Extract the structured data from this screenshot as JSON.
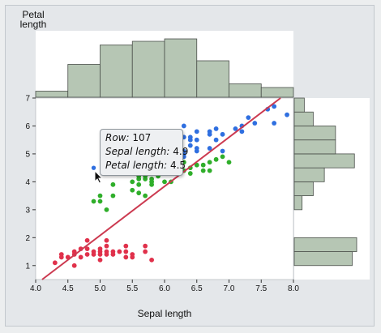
{
  "window": {
    "background": "#eceeef"
  },
  "tooltip": {
    "row_label": "Row:",
    "row_value": "107",
    "x_label": "Sepal length:",
    "x_value": "4.9",
    "y_label": "Petal length:",
    "y_value": "4.5"
  },
  "colors": {
    "setosa": "#e0314b",
    "versicolor": "#2fae2a",
    "virginica": "#2f6fe0",
    "fit_line": "#cc3a50",
    "histogram_fill": "#b6c6b4",
    "histogram_stroke": "#4a4f4a"
  },
  "chart_data": {
    "type": "scatter",
    "xlabel": "Sepal length",
    "ylabel_lines": [
      "Petal",
      "length"
    ],
    "xlim": [
      4.0,
      8.0
    ],
    "ylim": [
      0.5,
      7.0
    ],
    "x_ticks": [
      "4.0",
      "4.5",
      "5.0",
      "5.5",
      "6.0",
      "6.5",
      "7.0",
      "7.5",
      "8.0"
    ],
    "y_ticks": [
      "1",
      "2",
      "3",
      "4",
      "5",
      "6",
      "7"
    ],
    "fit_line": {
      "x0": 4.1,
      "y0": 0.5,
      "x1": 7.8,
      "y1": 7.0
    },
    "highlighted_point": {
      "x": 4.9,
      "y": 4.5,
      "row": 107
    },
    "series": [
      {
        "group": "setosa",
        "points": [
          [
            4.3,
            1.1
          ],
          [
            4.4,
            1.3
          ],
          [
            4.4,
            1.4
          ],
          [
            4.5,
            1.3
          ],
          [
            4.6,
            1.0
          ],
          [
            4.6,
            1.4
          ],
          [
            4.6,
            1.5
          ],
          [
            4.7,
            1.3
          ],
          [
            4.7,
            1.6
          ],
          [
            4.8,
            1.4
          ],
          [
            4.8,
            1.6
          ],
          [
            4.8,
            1.9
          ],
          [
            4.9,
            1.4
          ],
          [
            4.9,
            1.5
          ],
          [
            5.0,
            1.2
          ],
          [
            5.0,
            1.4
          ],
          [
            5.0,
            1.5
          ],
          [
            5.0,
            1.6
          ],
          [
            5.1,
            1.4
          ],
          [
            5.1,
            1.5
          ],
          [
            5.1,
            1.7
          ],
          [
            5.1,
            1.9
          ],
          [
            5.2,
            1.4
          ],
          [
            5.2,
            1.5
          ],
          [
            5.3,
            1.5
          ],
          [
            5.4,
            1.3
          ],
          [
            5.4,
            1.5
          ],
          [
            5.4,
            1.7
          ],
          [
            5.5,
            1.3
          ],
          [
            5.5,
            1.4
          ],
          [
            5.7,
            1.5
          ],
          [
            5.7,
            1.7
          ],
          [
            5.8,
            1.2
          ]
        ]
      },
      {
        "group": "versicolor",
        "points": [
          [
            4.9,
            3.3
          ],
          [
            5.0,
            3.5
          ],
          [
            5.0,
            3.3
          ],
          [
            5.1,
            3.0
          ],
          [
            5.2,
            3.9
          ],
          [
            5.5,
            3.7
          ],
          [
            5.5,
            4.0
          ],
          [
            5.5,
            4.4
          ],
          [
            5.6,
            3.6
          ],
          [
            5.6,
            3.9
          ],
          [
            5.6,
            4.1
          ],
          [
            5.6,
            4.2
          ],
          [
            5.6,
            4.5
          ],
          [
            5.7,
            3.5
          ],
          [
            5.7,
            4.1
          ],
          [
            5.7,
            4.2
          ],
          [
            5.8,
            3.9
          ],
          [
            5.8,
            4.0
          ],
          [
            5.8,
            4.1
          ],
          [
            5.9,
            4.2
          ],
          [
            5.9,
            4.8
          ],
          [
            6.0,
            4.0
          ],
          [
            6.0,
            4.5
          ],
          [
            6.0,
            5.1
          ],
          [
            6.1,
            4.0
          ],
          [
            6.1,
            4.7
          ],
          [
            6.2,
            4.3
          ],
          [
            6.2,
            4.5
          ],
          [
            6.3,
            4.4
          ],
          [
            6.3,
            4.7
          ],
          [
            6.4,
            4.3
          ],
          [
            6.4,
            4.5
          ],
          [
            6.5,
            4.6
          ],
          [
            6.6,
            4.4
          ],
          [
            6.6,
            4.6
          ],
          [
            6.7,
            4.4
          ],
          [
            6.7,
            4.7
          ],
          [
            6.8,
            4.8
          ],
          [
            6.9,
            4.9
          ],
          [
            7.0,
            4.7
          ],
          [
            5.4,
            4.5
          ],
          [
            5.2,
            3.5
          ]
        ]
      },
      {
        "group": "virginica",
        "points": [
          [
            4.9,
            4.5
          ],
          [
            5.6,
            4.9
          ],
          [
            5.7,
            5.0
          ],
          [
            5.8,
            5.1
          ],
          [
            5.8,
            5.1
          ],
          [
            6.0,
            4.8
          ],
          [
            6.0,
            5.0
          ],
          [
            6.1,
            4.9
          ],
          [
            6.1,
            5.6
          ],
          [
            6.2,
            4.8
          ],
          [
            6.2,
            5.4
          ],
          [
            6.3,
            4.9
          ],
          [
            6.3,
            5.0
          ],
          [
            6.3,
            5.1
          ],
          [
            6.3,
            5.6
          ],
          [
            6.3,
            6.0
          ],
          [
            6.4,
            5.3
          ],
          [
            6.4,
            5.5
          ],
          [
            6.4,
            5.6
          ],
          [
            6.5,
            5.1
          ],
          [
            6.5,
            5.2
          ],
          [
            6.5,
            5.5
          ],
          [
            6.5,
            5.8
          ],
          [
            6.7,
            5.2
          ],
          [
            6.7,
            5.7
          ],
          [
            6.7,
            5.8
          ],
          [
            6.8,
            5.5
          ],
          [
            6.8,
            5.9
          ],
          [
            6.9,
            5.1
          ],
          [
            6.9,
            5.7
          ],
          [
            7.1,
            5.9
          ],
          [
            7.2,
            5.8
          ],
          [
            7.2,
            6.0
          ],
          [
            7.3,
            6.3
          ],
          [
            7.4,
            6.1
          ],
          [
            7.6,
            6.6
          ],
          [
            7.7,
            6.1
          ],
          [
            7.7,
            6.7
          ],
          [
            7.9,
            6.4
          ],
          [
            6.1,
            5.8
          ]
        ]
      }
    ],
    "x_histogram": {
      "bins": [
        [
          4.0,
          4.5,
          5
        ],
        [
          4.5,
          5.0,
          27
        ],
        [
          5.0,
          5.5,
          43
        ],
        [
          5.5,
          6.0,
          46
        ],
        [
          6.0,
          6.5,
          48
        ],
        [
          6.5,
          7.0,
          30
        ],
        [
          7.0,
          7.5,
          11
        ],
        [
          7.5,
          8.0,
          8
        ]
      ]
    },
    "y_histogram": {
      "bins": [
        [
          1.0,
          1.5,
          52
        ],
        [
          1.5,
          2.0,
          56
        ],
        [
          3.0,
          3.5,
          7
        ],
        [
          3.5,
          4.0,
          17
        ],
        [
          4.0,
          4.5,
          27
        ],
        [
          4.5,
          5.0,
          54
        ],
        [
          5.0,
          5.5,
          37
        ],
        [
          5.5,
          6.0,
          37
        ],
        [
          6.0,
          6.5,
          17
        ],
        [
          6.5,
          7.0,
          9
        ]
      ]
    }
  }
}
